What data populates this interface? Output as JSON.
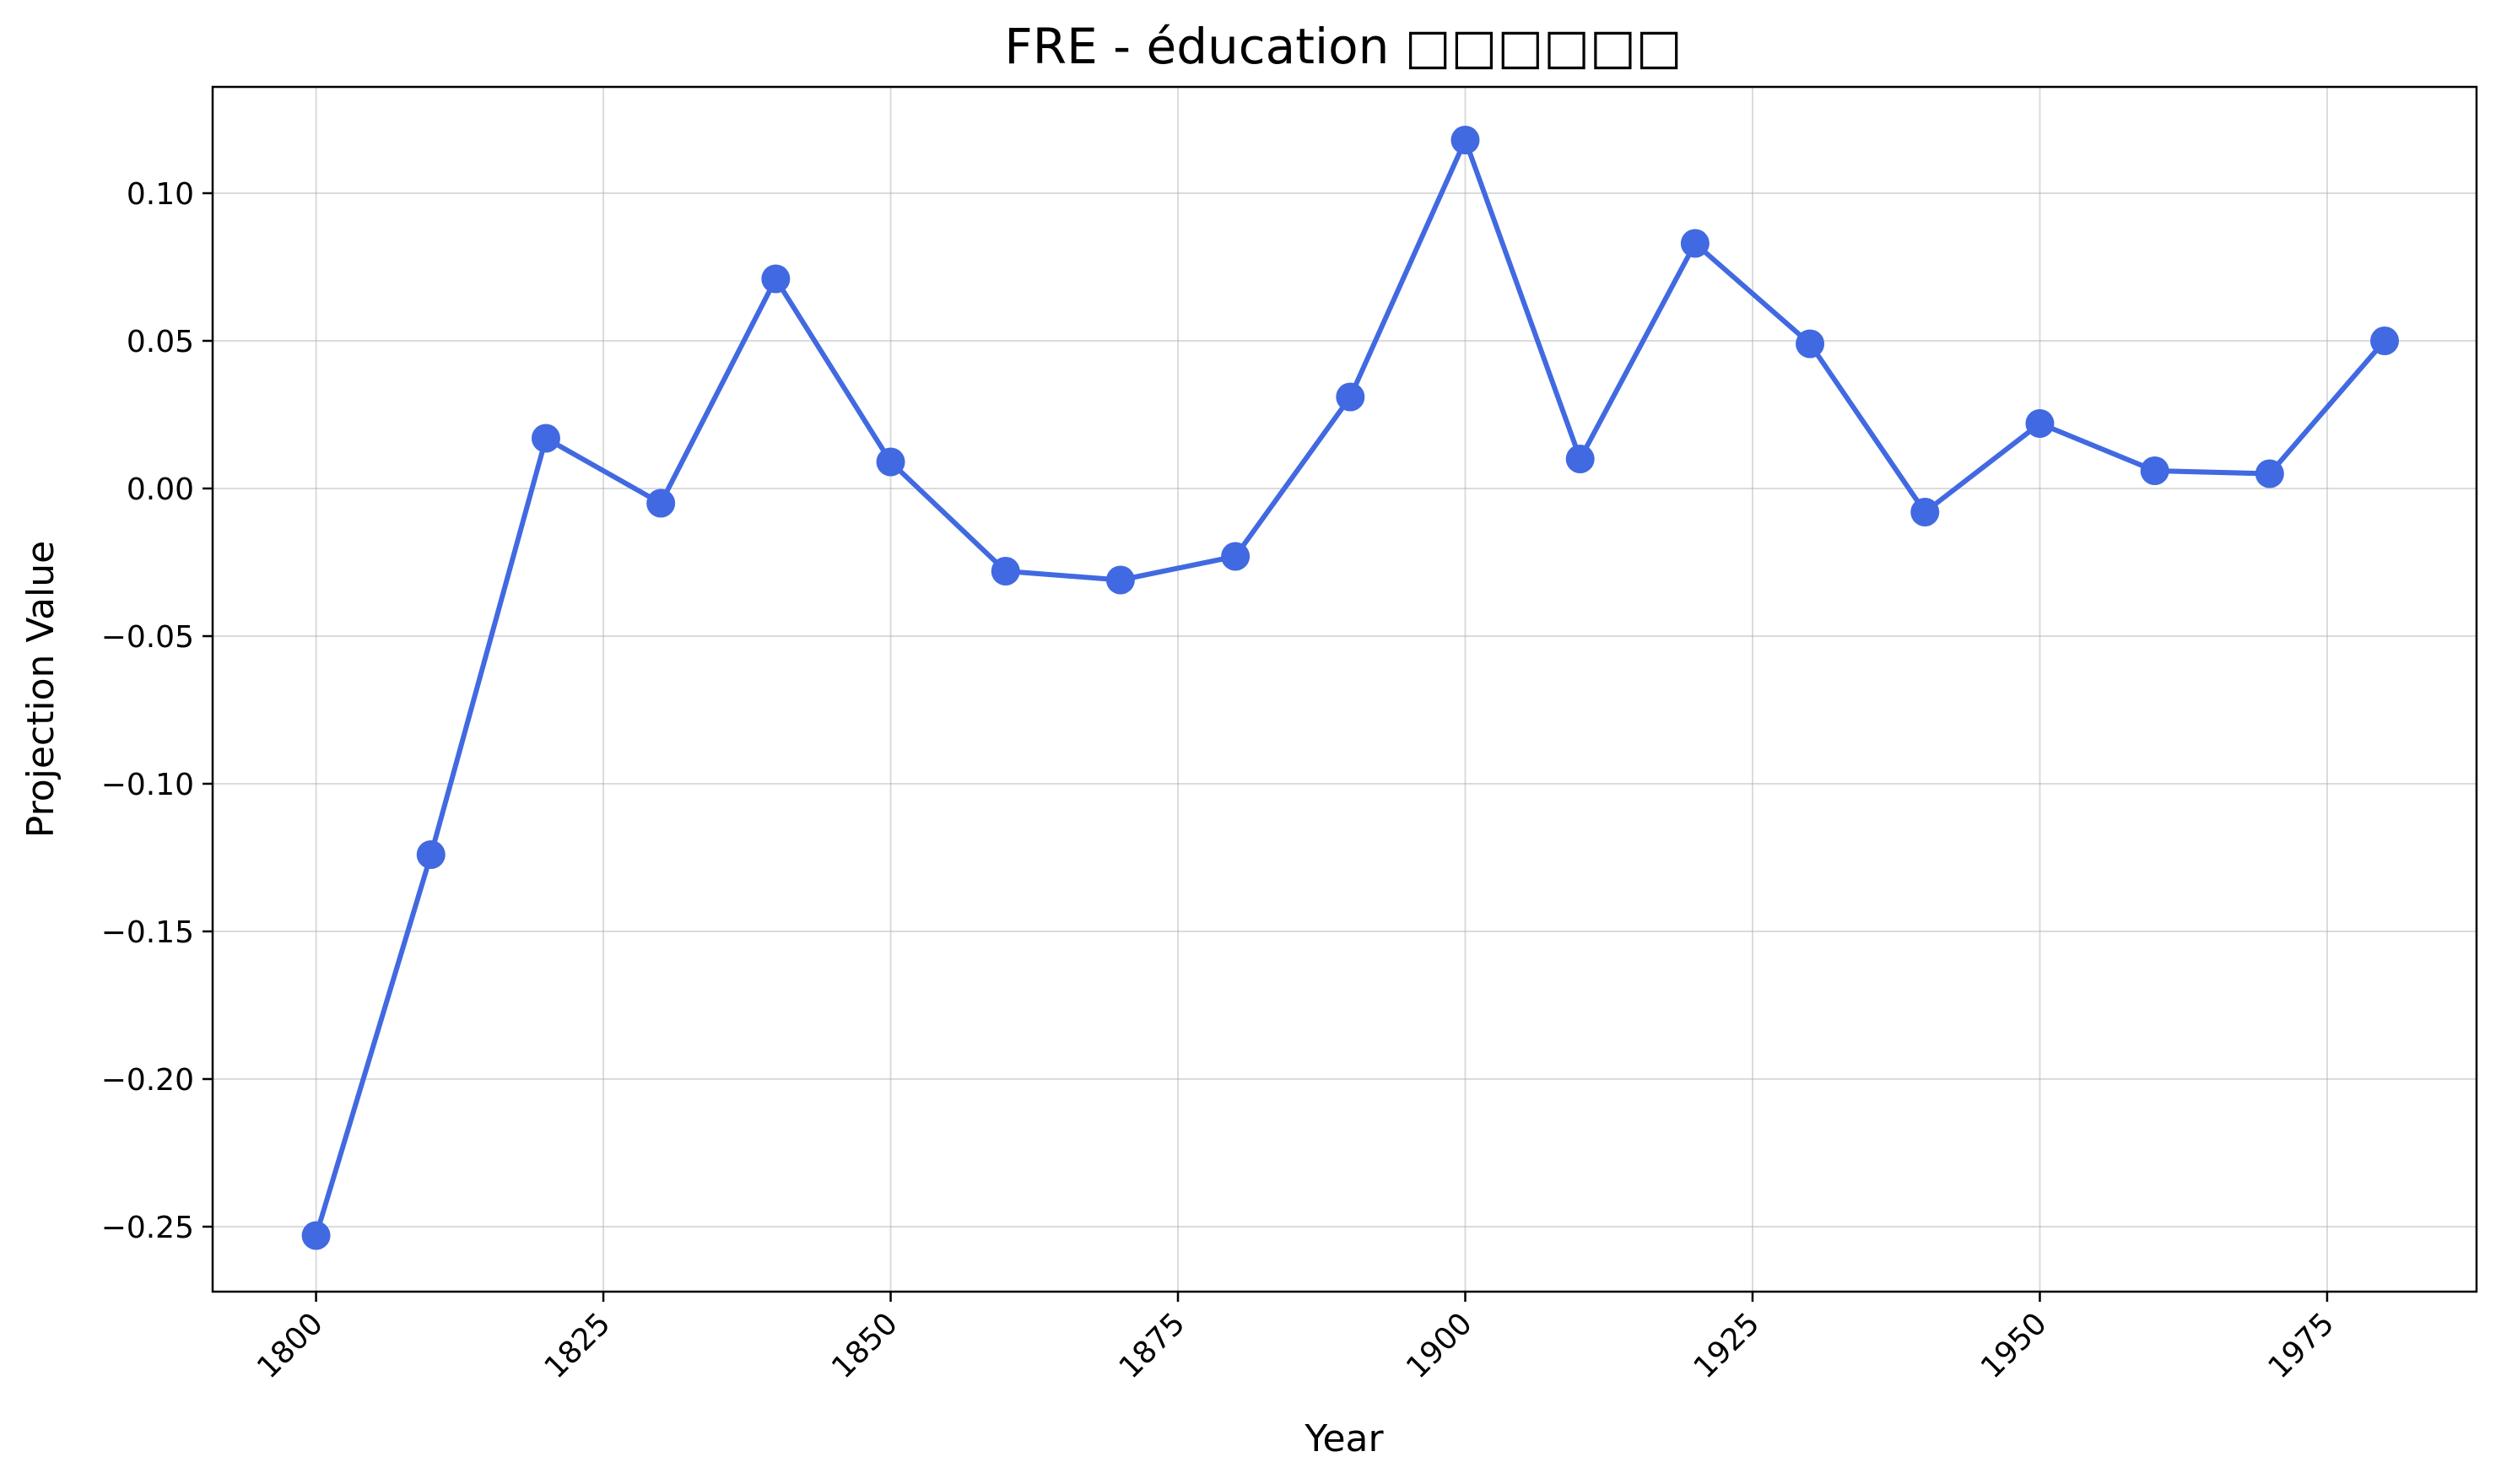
{
  "chart_data": {
    "type": "line",
    "title": "FRE - éducation □□□□□□",
    "xlabel": "Year",
    "ylabel": "Projection Value",
    "xlim": [
      1791,
      1988
    ],
    "ylim": [
      -0.272,
      0.136
    ],
    "x_ticks": [
      1800,
      1825,
      1850,
      1875,
      1900,
      1925,
      1950,
      1975
    ],
    "y_ticks": [
      -0.25,
      -0.2,
      -0.15,
      -0.1,
      -0.05,
      0.0,
      0.05,
      0.1
    ],
    "y_tick_labels": [
      "−0.25",
      "−0.20",
      "−0.15",
      "−0.10",
      "−0.05",
      "0.00",
      "0.05",
      "0.10"
    ],
    "grid": true,
    "color": "#4169e1",
    "x": [
      1800,
      1810,
      1820,
      1830,
      1840,
      1850,
      1860,
      1870,
      1880,
      1890,
      1900,
      1910,
      1920,
      1930,
      1940,
      1950,
      1960,
      1970,
      1980
    ],
    "series": [
      {
        "values": [
          -0.253,
          -0.124,
          0.017,
          -0.005,
          0.071,
          0.009,
          -0.028,
          -0.031,
          -0.023,
          0.031,
          0.118,
          0.01,
          0.083,
          0.049,
          -0.008,
          0.022,
          0.006,
          0.005,
          0.05
        ]
      }
    ]
  }
}
